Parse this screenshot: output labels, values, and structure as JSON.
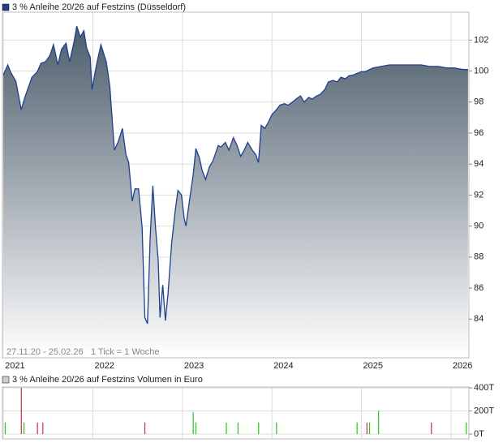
{
  "chart_data": [
    {
      "type": "area",
      "title": "3 % Anleihe 20/26 auf Festzins (Düsseldorf)",
      "color": "#1f3f8f",
      "fill_top": "#4d5d6c",
      "annotations": [
        "27.11.20 - 25.02.26",
        "1 Tick = 1 Woche"
      ],
      "x": [
        2021.0,
        2021.05,
        2021.08,
        2021.14,
        2021.2,
        2021.24,
        2021.32,
        2021.38,
        2021.42,
        2021.47,
        2021.52,
        2021.56,
        2021.61,
        2021.65,
        2021.7,
        2021.74,
        2021.79,
        2021.82,
        2021.86,
        2021.9,
        2021.93,
        2021.97,
        2021.99,
        2022.04,
        2022.09,
        2022.15,
        2022.19,
        2022.24,
        2022.28,
        2022.33,
        2022.37,
        2022.4,
        2022.44,
        2022.47,
        2022.51,
        2022.55,
        2022.58,
        2022.61,
        2022.64,
        2022.67,
        2022.7,
        2022.73,
        2022.75,
        2022.78,
        2022.81,
        2022.84,
        2022.88,
        2022.92,
        2022.95,
        2022.99,
        2023.02,
        2023.04,
        2023.08,
        2023.12,
        2023.15,
        2023.19,
        2023.22,
        2023.26,
        2023.3,
        2023.34,
        2023.4,
        2023.43,
        2023.48,
        2023.52,
        2023.57,
        2023.61,
        2023.65,
        2023.69,
        2023.73,
        2023.78,
        2023.82,
        2023.85,
        2023.88,
        2023.92,
        2023.96,
        2024.0,
        2024.05,
        2024.09,
        2024.14,
        2024.18,
        2024.23,
        2024.27,
        2024.32,
        2024.36,
        2024.41,
        2024.45,
        2024.5,
        2024.54,
        2024.59,
        2024.63,
        2024.68,
        2024.73,
        2024.77,
        2024.82,
        2024.86,
        2024.91,
        2024.95,
        2025.0,
        2025.04,
        2025.09,
        2025.13,
        2025.22,
        2025.31,
        2025.4,
        2025.49,
        2025.58,
        2025.67,
        2025.76,
        2025.86,
        2025.95,
        2026.04,
        2026.13,
        2026.19
      ],
      "values": [
        99.75,
        100.4,
        99.96,
        99.33,
        97.5,
        98.3,
        99.6,
        99.96,
        100.5,
        100.6,
        101.0,
        101.7,
        100.4,
        101.4,
        101.8,
        100.6,
        101.9,
        102.9,
        102.2,
        102.6,
        101.5,
        100.9,
        98.8,
        100.4,
        101.7,
        100.6,
        99.0,
        94.9,
        95.4,
        96.3,
        94.6,
        94.1,
        91.6,
        92.4,
        92.4,
        89.9,
        84.1,
        83.7,
        89.3,
        92.6,
        89.9,
        87.8,
        84.1,
        86.2,
        83.9,
        85.7,
        88.9,
        91.0,
        92.3,
        92.0,
        90.5,
        90.0,
        91.7,
        93.3,
        95.0,
        94.4,
        93.6,
        93.0,
        93.8,
        94.2,
        95.2,
        95.1,
        95.4,
        94.9,
        95.7,
        95.2,
        94.5,
        94.9,
        95.4,
        94.9,
        94.6,
        94.1,
        96.5,
        96.3,
        96.7,
        97.2,
        97.5,
        97.8,
        97.9,
        97.8,
        98.0,
        98.2,
        98.4,
        98.0,
        98.3,
        98.2,
        98.4,
        98.5,
        98.8,
        99.3,
        99.4,
        99.3,
        99.6,
        99.5,
        99.7,
        99.75,
        99.85,
        99.96,
        99.96,
        100.1,
        100.2,
        100.3,
        100.4,
        100.4,
        100.4,
        100.4,
        100.4,
        100.3,
        100.3,
        100.2,
        100.2,
        100.1,
        100.1
      ],
      "xlim": [
        2020.99,
        2026.2
      ],
      "xticks": [
        2021,
        2022,
        2023,
        2024,
        2025,
        2026
      ],
      "ylim": [
        81.5,
        103.8
      ],
      "yticks": [
        84,
        86,
        88,
        90,
        92,
        94,
        96,
        98,
        100,
        102
      ],
      "grid": true
    },
    {
      "type": "bar",
      "title": "3 % Anleihe 20/26 auf Festzins Volumen in Euro",
      "x": [
        2021.02,
        2021.2,
        2021.23,
        2021.38,
        2021.44,
        2022.58,
        2023.12,
        2023.15,
        2023.49,
        2023.62,
        2023.85,
        2024.05,
        2024.95,
        2025.06,
        2025.09,
        2025.19,
        2025.78,
        2026.17
      ],
      "values": [
        100000,
        400000,
        100000,
        100000,
        100000,
        100000,
        190000,
        100000,
        100000,
        100000,
        100000,
        100000,
        100000,
        100000,
        100000,
        200000,
        100000,
        100000
      ],
      "colors": [
        "#33bb33",
        "#cc3333",
        "#33bb33",
        "#cc3333",
        "#cc3333",
        "#cc3333",
        "#33bb33",
        "#33bb33",
        "#33bb33",
        "#33bb33",
        "#33bb33",
        "#33bb33",
        "#33bb33",
        "#cc3333",
        "#33bb33",
        "#33bb33",
        "#cc3333",
        "#33bb33"
      ],
      "xlim": [
        2020.99,
        2026.2
      ],
      "xticks": [
        2021,
        2022,
        2023,
        2024,
        2025,
        2026
      ],
      "ylim": [
        0,
        400000
      ],
      "yticks": [
        {
          "value": 0,
          "label": "0T"
        },
        {
          "value": 200000,
          "label": "200T"
        },
        {
          "value": 400000,
          "label": "400T"
        }
      ],
      "grid": true
    }
  ]
}
